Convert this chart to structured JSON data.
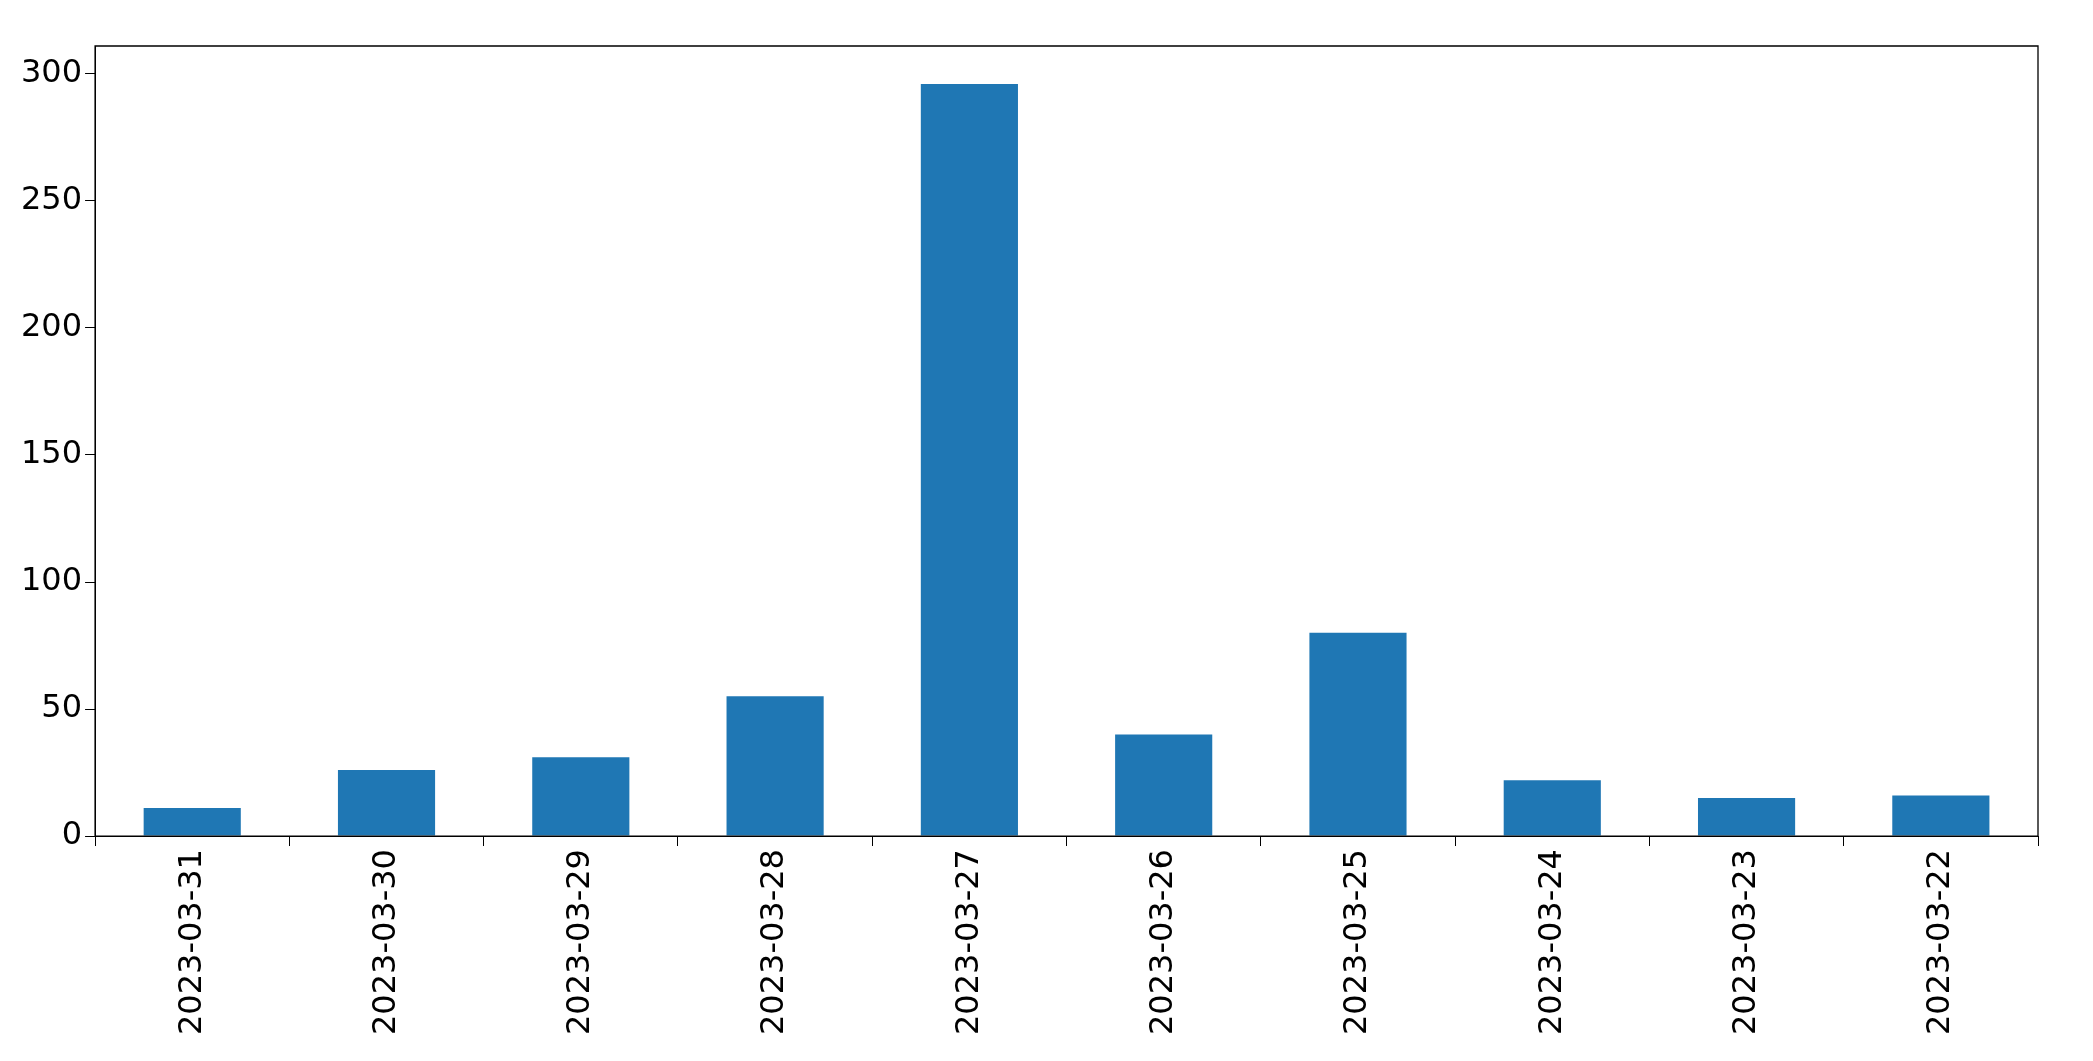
{
  "chart_data": {
    "type": "bar",
    "categories": [
      "2023-03-31",
      "2023-03-30",
      "2023-03-29",
      "2023-03-28",
      "2023-03-27",
      "2023-03-26",
      "2023-03-25",
      "2023-03-24",
      "2023-03-23",
      "2023-03-22"
    ],
    "values": [
      11,
      26,
      31,
      55,
      296,
      40,
      80,
      22,
      15,
      16
    ],
    "color": "#1f77b4",
    "ylim": [
      0,
      311
    ],
    "yticks": [
      0,
      50,
      100,
      150,
      200,
      250,
      300
    ],
    "grid": false,
    "legend": false
  }
}
